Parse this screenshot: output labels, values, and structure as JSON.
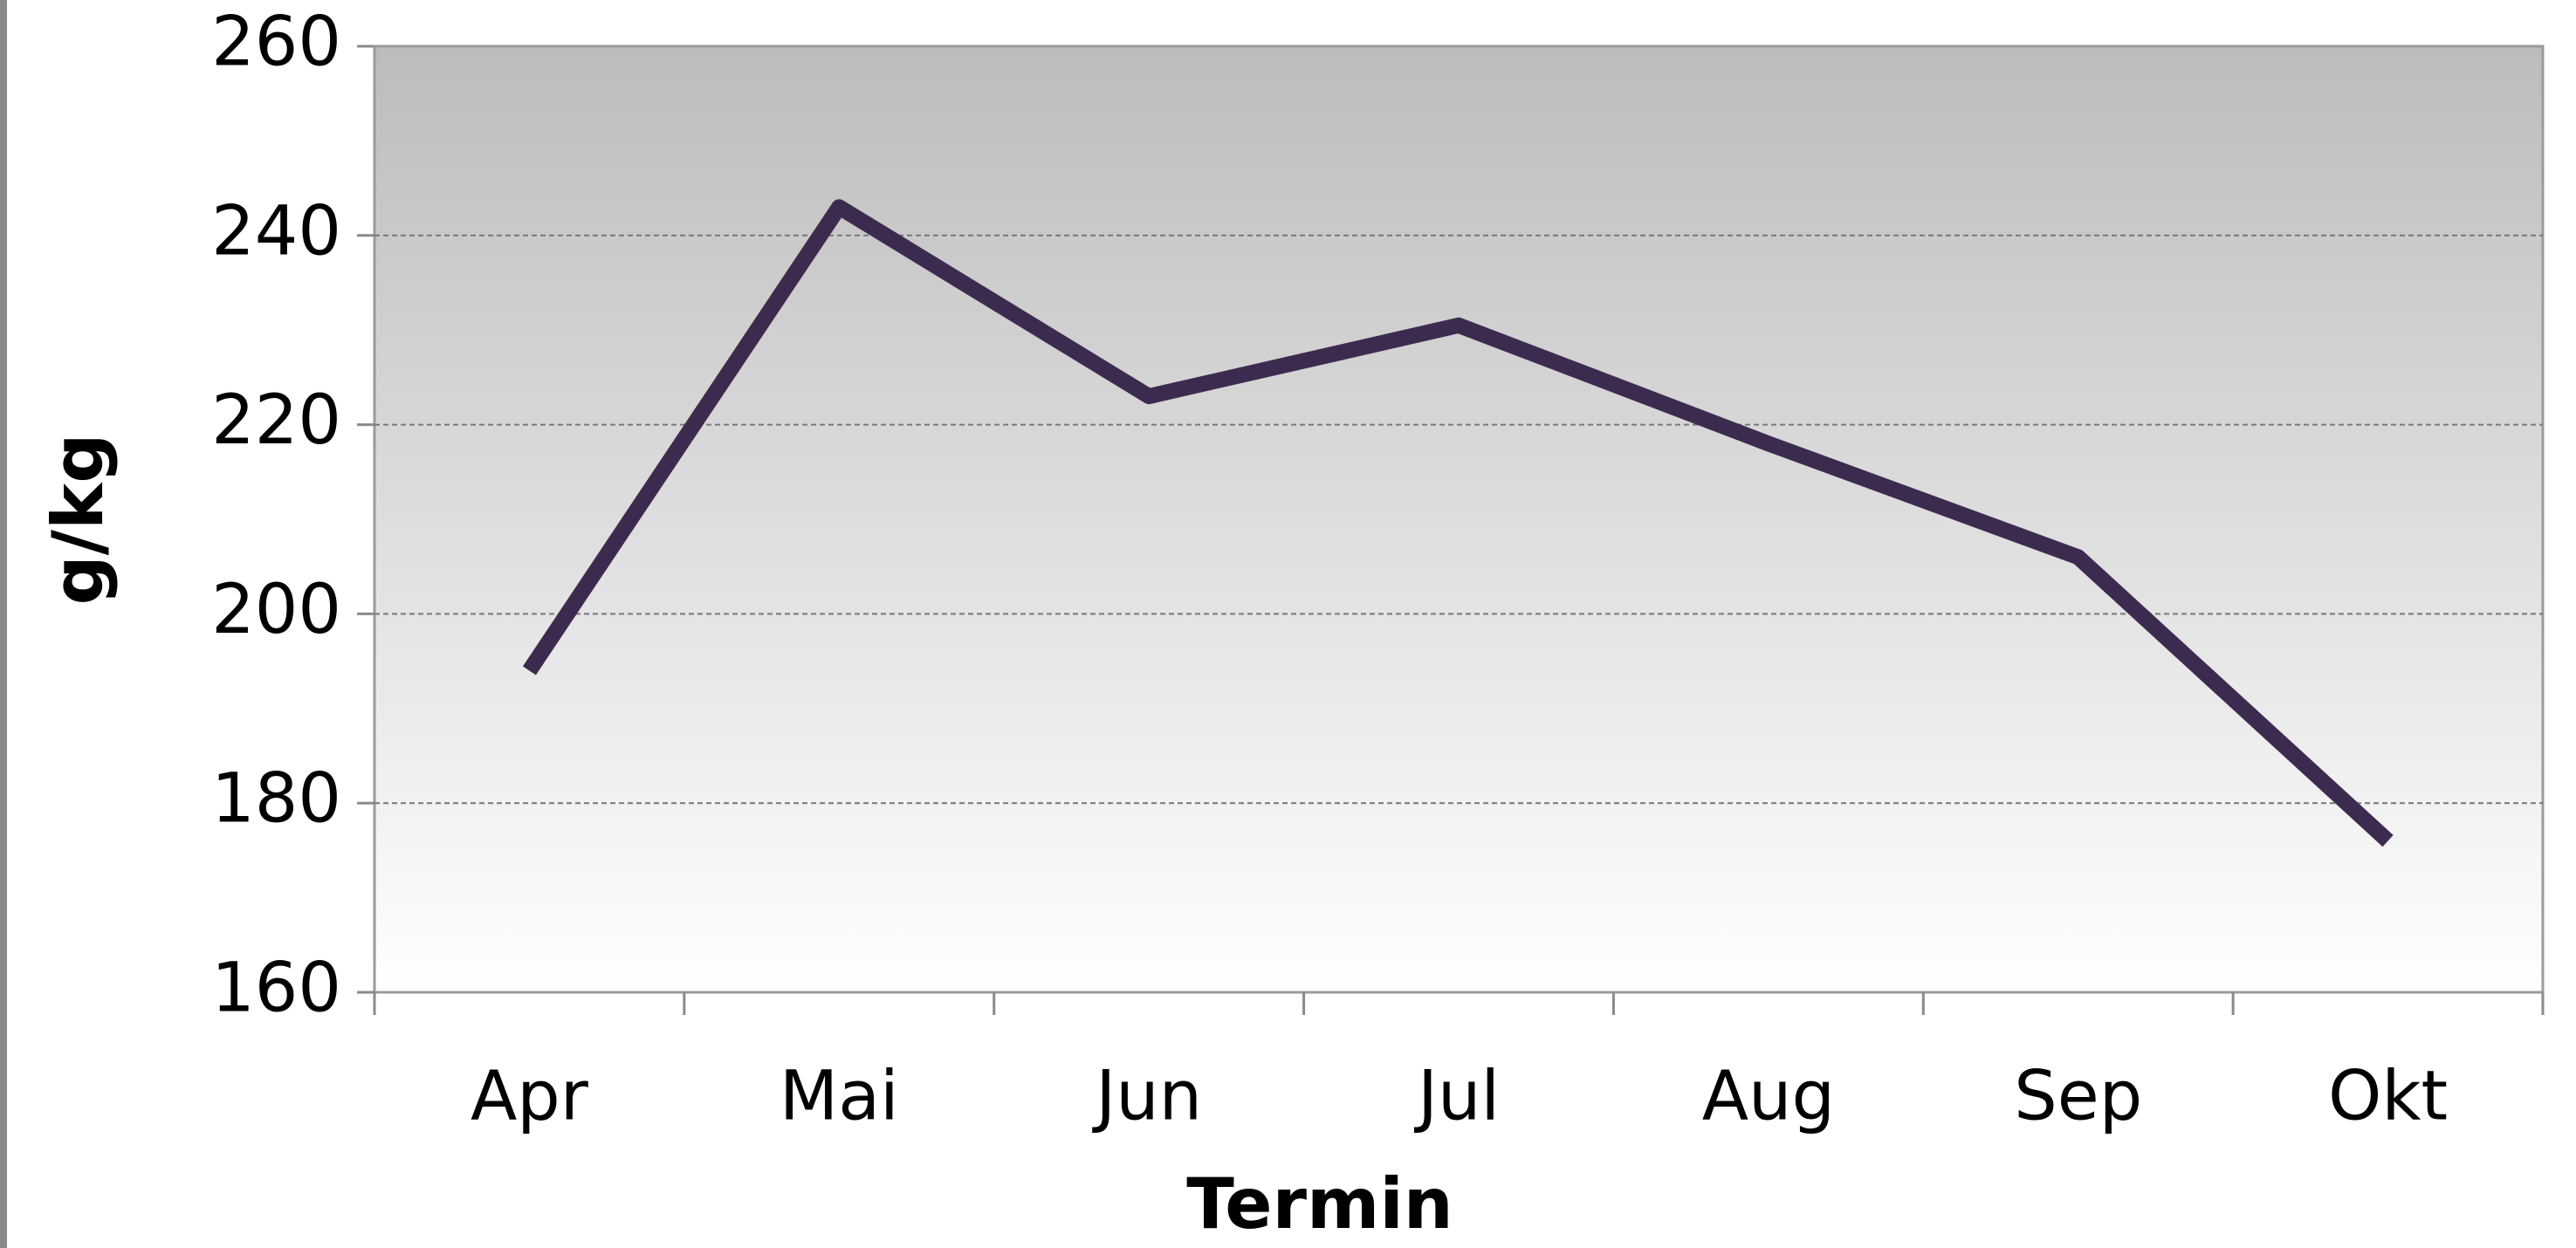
{
  "chart_data": {
    "type": "line",
    "x_label": "Termin",
    "y_label": "g/kg",
    "categories": [
      "Apr",
      "Mai",
      "Jun",
      "Jul",
      "Aug",
      "Sep",
      "Okt"
    ],
    "series": [
      {
        "name": "g/kg",
        "color": "#3d2b4f",
        "values": [
          194,
          243,
          223,
          230.5,
          218,
          206,
          176
        ]
      }
    ],
    "ylim": [
      160,
      260
    ],
    "yticks": [
      160,
      180,
      200,
      220,
      240,
      260
    ],
    "grid": true
  }
}
